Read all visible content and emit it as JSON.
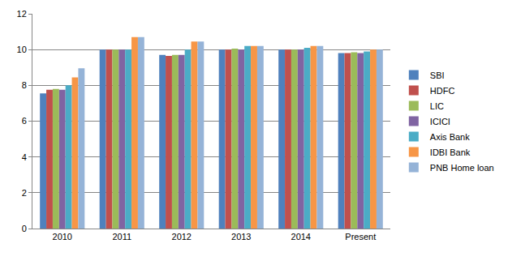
{
  "chart_data": {
    "type": "bar",
    "categories": [
      "2010",
      "2011",
      "2012",
      "2013",
      "2014",
      "Present"
    ],
    "series": [
      {
        "name": "SBI",
        "color": "#4F81BD",
        "values": [
          7.55,
          10,
          9.7,
          10,
          10,
          9.8
        ]
      },
      {
        "name": "HDFC",
        "color": "#C0504D",
        "values": [
          7.75,
          10,
          9.65,
          10,
          10,
          9.8
        ]
      },
      {
        "name": "LIC",
        "color": "#9BBB59",
        "values": [
          7.8,
          10,
          9.7,
          10.05,
          10,
          9.85
        ]
      },
      {
        "name": "ICICI",
        "color": "#8064A2",
        "values": [
          7.75,
          10,
          9.7,
          10,
          10,
          9.8
        ]
      },
      {
        "name": "Axis Bank",
        "color": "#4BACC6",
        "values": [
          8.0,
          10,
          10.0,
          10.2,
          10.1,
          9.9
        ]
      },
      {
        "name": "IDBI Bank",
        "color": "#F79646",
        "values": [
          8.45,
          10.7,
          10.45,
          10.2,
          10.2,
          10.0
        ]
      },
      {
        "name": "PNB Home loan",
        "color": "#95B3D7",
        "values": [
          8.95,
          10.7,
          10.45,
          10.2,
          10.2,
          10.0
        ]
      }
    ],
    "ylim": [
      0,
      12
    ],
    "yticks": [
      0,
      2,
      4,
      6,
      8,
      10,
      12
    ],
    "grid": true,
    "legend": "right"
  }
}
